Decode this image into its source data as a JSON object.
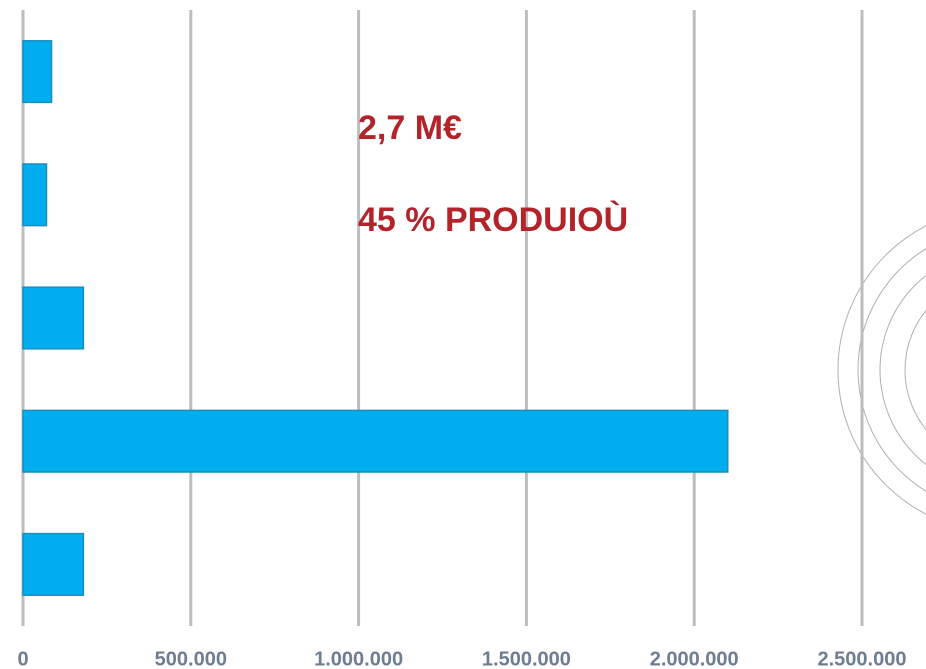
{
  "chart_data": {
    "type": "bar",
    "orientation": "horizontal",
    "categories": [
      null,
      null,
      null,
      null,
      null
    ],
    "values": [
      85000,
      70000,
      180000,
      2100000,
      180000
    ],
    "color": "#00aeef",
    "xlim": [
      0,
      2500000
    ],
    "xticks": [
      0,
      {
        "value": 500000,
        "label": "500.000"
      },
      {
        "value": 1000000,
        "label": "1.000.000"
      },
      {
        "value": 1500000,
        "label": "1.500.000"
      },
      {
        "value": 2000000,
        "label": "2.000.000"
      },
      {
        "value": 2500000,
        "label": "2.500.000"
      }
    ],
    "grid": true,
    "annotations": [
      "2,7 M€",
      "45 % PRODUIOÙ"
    ]
  }
}
